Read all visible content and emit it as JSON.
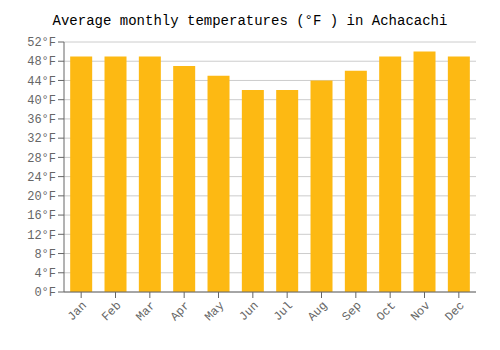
{
  "chart_data": {
    "type": "bar",
    "title": "Average monthly temperatures (°F ) in Achacachi",
    "categories": [
      "Jan",
      "Feb",
      "Mar",
      "Apr",
      "May",
      "Jun",
      "Jul",
      "Aug",
      "Sep",
      "Oct",
      "Nov",
      "Dec"
    ],
    "values": [
      49,
      49,
      49,
      47,
      45,
      42,
      42,
      44,
      46,
      49,
      50,
      49
    ],
    "color": "#FDB913",
    "ylim": [
      0,
      52
    ],
    "yticks": [
      {
        "value": 0,
        "label": "0°F"
      },
      {
        "value": 4,
        "label": "4°F"
      },
      {
        "value": 8,
        "label": "8°F"
      },
      {
        "value": 12,
        "label": "12°F"
      },
      {
        "value": 16,
        "label": "16°F"
      },
      {
        "value": 20,
        "label": "20°F"
      },
      {
        "value": 24,
        "label": "24°F"
      },
      {
        "value": 28,
        "label": "28°F"
      },
      {
        "value": 32,
        "label": "32°F"
      },
      {
        "value": 36,
        "label": "36°F"
      },
      {
        "value": 40,
        "label": "40°F"
      },
      {
        "value": 44,
        "label": "44°F"
      },
      {
        "value": 48,
        "label": "48°F"
      },
      {
        "value": 52,
        "label": "52°F"
      }
    ],
    "grid": true
  }
}
